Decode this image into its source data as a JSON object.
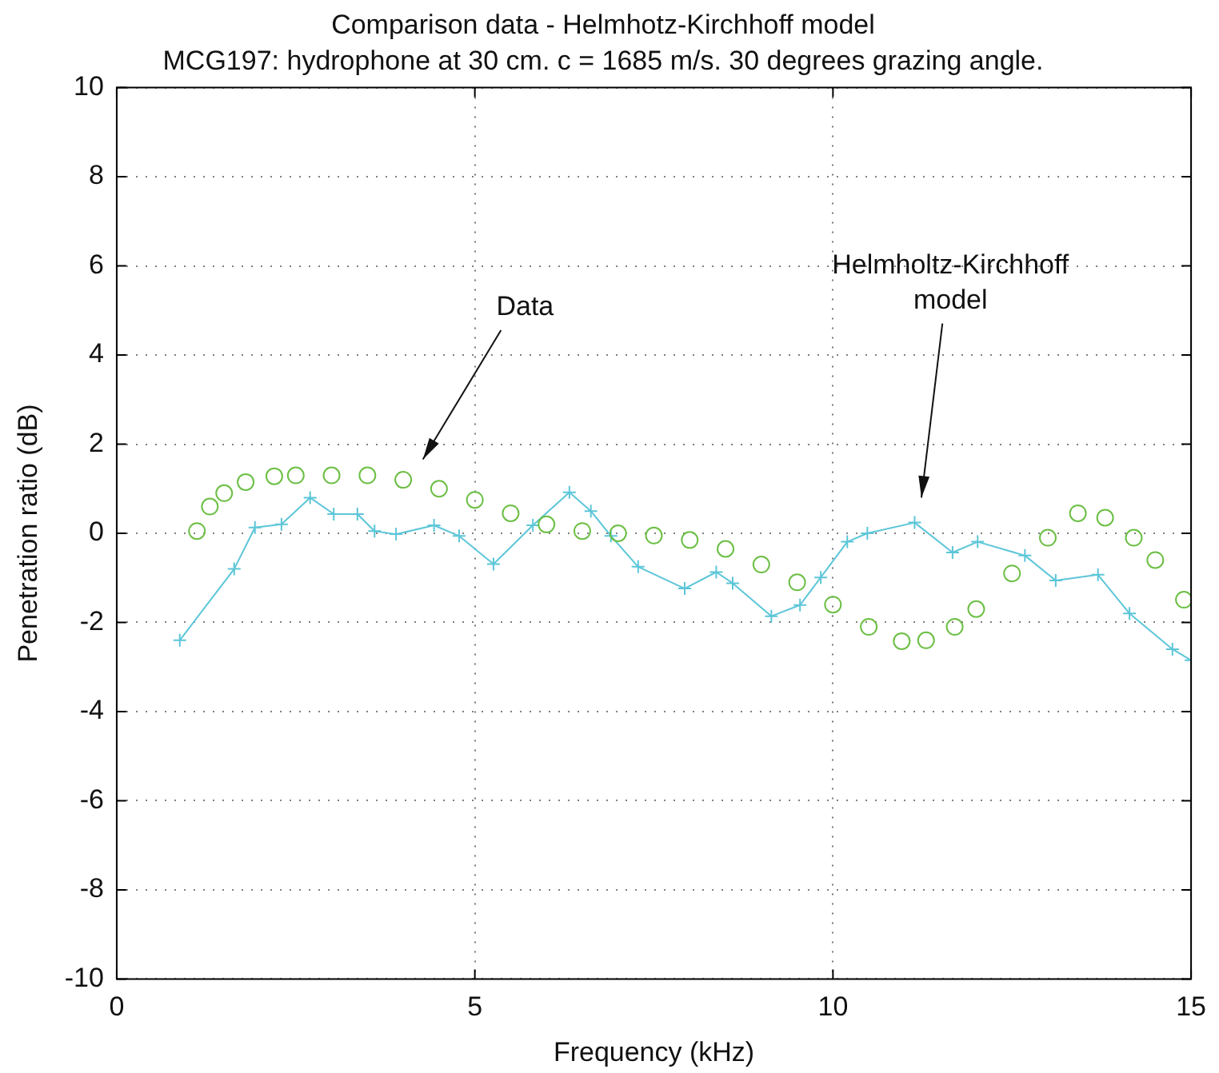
{
  "chart_data": {
    "type": "line",
    "title": "Comparison data - Helmhotz-Kirchhoff model",
    "subtitle": "MCG197: hydrophone at 30 cm. c = 1685 m/s. 30 degrees grazing angle.",
    "xlabel": "Frequency (kHz)",
    "ylabel": "Penetration ratio (dB)",
    "xlim": [
      0,
      15
    ],
    "xticks": [
      0,
      5,
      10,
      15
    ],
    "ylim": [
      -10,
      10
    ],
    "yticks": [
      -10,
      -8,
      -6,
      -4,
      -2,
      0,
      2,
      4,
      6,
      8,
      10
    ],
    "grid": true,
    "series": [
      {
        "type": "scatter",
        "marker": "circle",
        "color": "#6cbf45",
        "x": [
          1.12,
          1.3,
          1.5,
          1.8,
          2.2,
          2.5,
          3,
          3.5,
          4,
          4.5,
          5,
          5.5,
          6,
          6.5,
          7,
          7.5,
          8,
          8.5,
          9,
          9.5,
          10,
          10.5,
          10.96,
          11.3,
          11.7,
          12,
          12.5,
          13,
          13.42,
          13.8,
          14.2,
          14.5,
          14.9
        ],
        "values": [
          0.05,
          0.6,
          0.9,
          1.15,
          1.28,
          1.3,
          1.3,
          1.3,
          1.2,
          1.0,
          0.75,
          0.45,
          0.2,
          0.05,
          0.0,
          -0.05,
          -0.15,
          -0.35,
          -0.7,
          -1.1,
          -1.6,
          -2.1,
          -2.42,
          -2.4,
          -2.1,
          -1.7,
          -0.9,
          -0.1,
          0.45,
          0.35,
          -0.1,
          -0.6,
          -1.49
        ]
      },
      {
        "marker": "cross",
        "line_style": "solid",
        "color": "#5cc6d8",
        "x": [
          0.88,
          1.64,
          1.93,
          2.3,
          2.7,
          3.03,
          3.36,
          3.6,
          3.9,
          4.43,
          4.78,
          5.26,
          5.81,
          6.32,
          6.62,
          6.9,
          7.28,
          7.93,
          8.37,
          8.6,
          9.14,
          9.54,
          9.83,
          10.2,
          10.48,
          11.14,
          11.67,
          12.02,
          12.68,
          13.11,
          13.7,
          14.14,
          14.74,
          15
        ],
        "values": [
          -2.4,
          -0.8,
          0.13,
          0.2,
          0.8,
          0.43,
          0.43,
          0.05,
          -0.02,
          0.18,
          -0.06,
          -0.69,
          0.18,
          0.92,
          0.5,
          -0.06,
          -0.75,
          -1.24,
          -0.87,
          -1.12,
          -1.86,
          -1.61,
          -0.99,
          -0.19,
          0.0,
          0.24,
          -0.43,
          -0.19,
          -0.5,
          -1.06,
          -0.93,
          -1.8,
          -2.6,
          -2.85
        ]
      }
    ],
    "annotations": [
      "Data",
      "Helmholtz-Kirchhoff\nmodel"
    ]
  }
}
